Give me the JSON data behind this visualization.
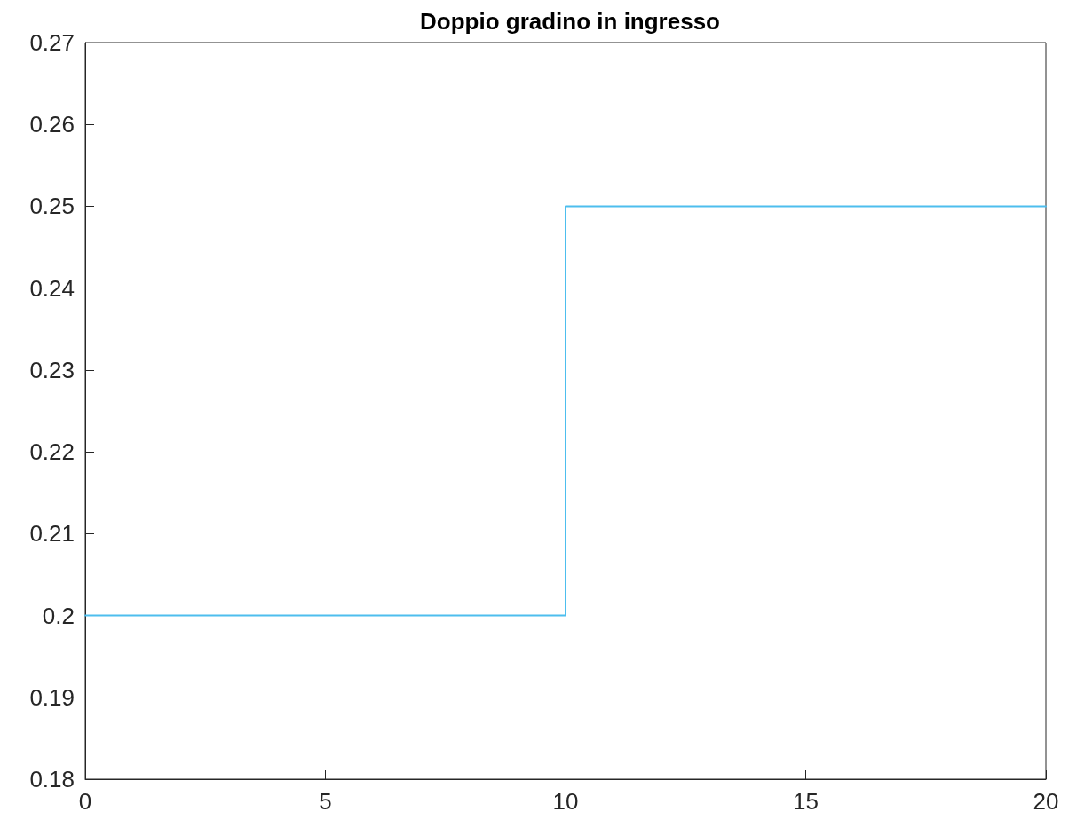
{
  "chart_data": {
    "type": "line",
    "title": "Doppio gradino in ingresso",
    "x": [
      0,
      10,
      10,
      20
    ],
    "values": [
      0.2,
      0.2,
      0.25,
      0.25
    ],
    "color": "#4dbeee",
    "xlim": [
      0,
      20
    ],
    "xticks": [
      0,
      5,
      10,
      15,
      20
    ],
    "ylim": [
      0.18,
      0.27
    ],
    "yticks": [
      0.18,
      0.19,
      0.2,
      0.21,
      0.22,
      0.23,
      0.24,
      0.25,
      0.26,
      0.27
    ],
    "grid": false,
    "marker": "none",
    "line_style": "solid"
  }
}
